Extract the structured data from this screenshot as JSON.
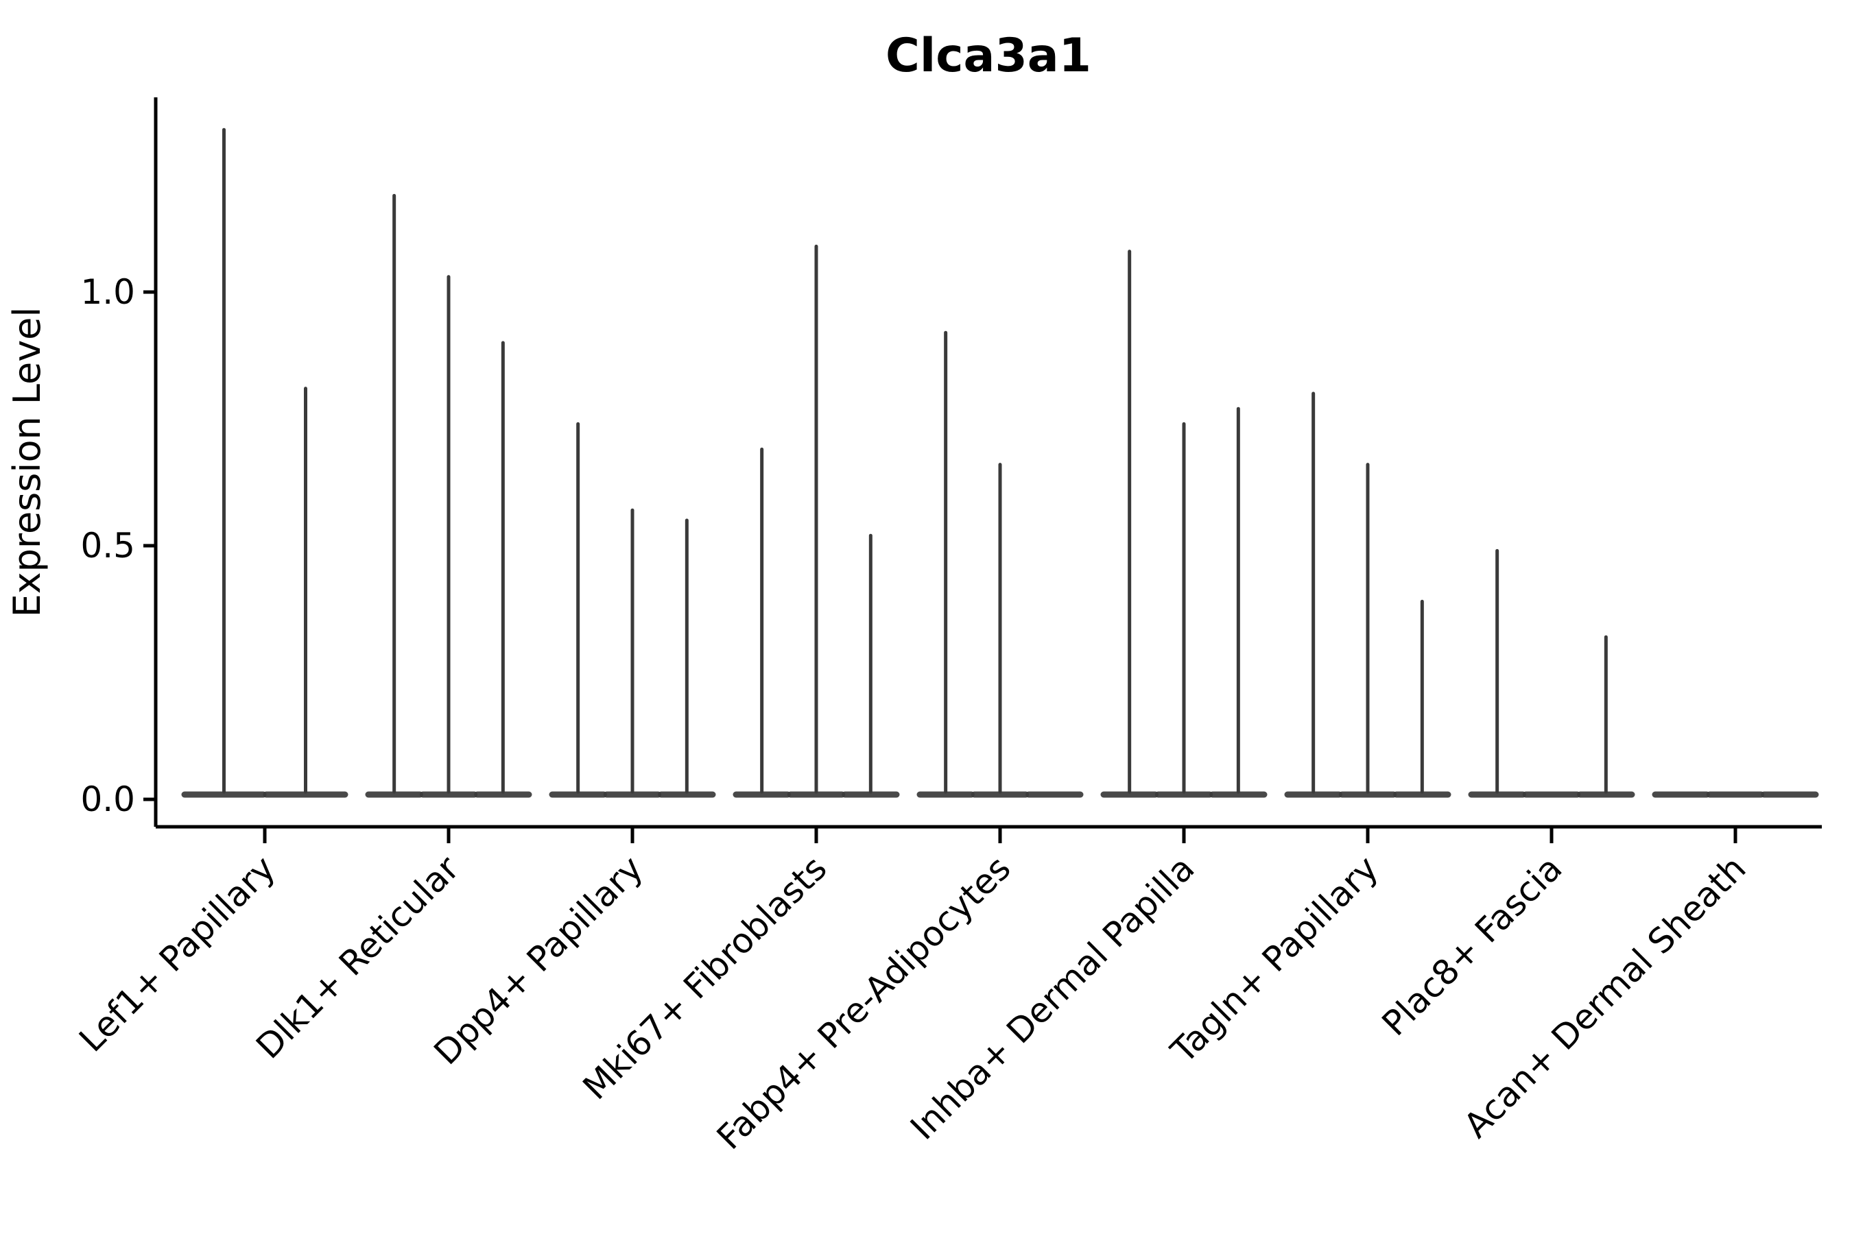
{
  "chart_data": {
    "type": "violin",
    "title": "Clca3a1",
    "ylabel": "Expression Level",
    "xlabel": "",
    "ytick_labels": [
      "0.0",
      "0.5",
      "1.0"
    ],
    "ytick_values": [
      0.0,
      0.5,
      1.0
    ],
    "ylim": [
      -0.055,
      1.385
    ],
    "grid": false,
    "legend": "none",
    "x_label_rotation_deg": 45,
    "categories": [
      "Lef1+ Papillary",
      "Dlk1+ Reticular",
      "Dpp4+ Papillary",
      "Mki67+ Fibroblasts",
      "Fabp4+ Pre-Adipocytes",
      "Inhba+ Dermal Papilla",
      "Tagln+ Papillary",
      "Plac8+ Fascia",
      "Acan+ Dermal Sheath"
    ],
    "groups": [
      {
        "label": "Lef1+ Papillary",
        "violin_spike_maxima": [
          1.32,
          0.81
        ]
      },
      {
        "label": "Dlk1+ Reticular",
        "violin_spike_maxima": [
          1.19,
          1.03,
          0.9
        ]
      },
      {
        "label": "Dpp4+ Papillary",
        "violin_spike_maxima": [
          0.74,
          0.57,
          0.55
        ]
      },
      {
        "label": "Mki67+ Fibroblasts",
        "violin_spike_maxima": [
          0.69,
          1.09,
          0.52
        ]
      },
      {
        "label": "Fabp4+ Pre-Adipocytes",
        "violin_spike_maxima": [
          0.92,
          0.66,
          0
        ]
      },
      {
        "label": "Inhba+ Dermal Papilla",
        "violin_spike_maxima": [
          1.08,
          0.74,
          0.77
        ]
      },
      {
        "label": "Tagln+ Papillary",
        "violin_spike_maxima": [
          0.8,
          0.66,
          0.39
        ]
      },
      {
        "label": "Plac8+ Fascia",
        "violin_spike_maxima": [
          0.49,
          0,
          0.32
        ]
      },
      {
        "label": "Acan+ Dermal Sheath",
        "violin_spike_maxima": [
          0,
          0,
          0
        ]
      }
    ],
    "colors": {
      "violin": "#3a3a3a",
      "axis": "#000000",
      "text": "#000000",
      "background": "#ffffff"
    }
  }
}
